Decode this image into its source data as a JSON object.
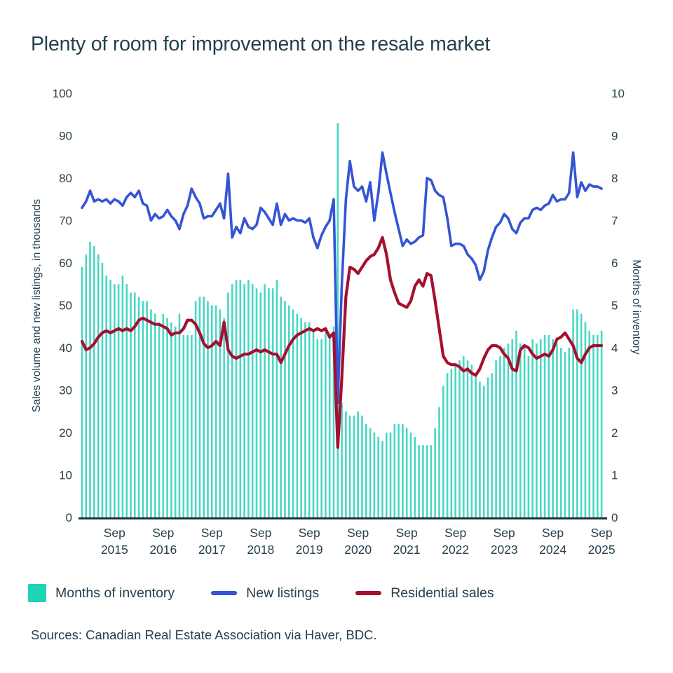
{
  "title": "Plenty of room for improvement on the resale market",
  "source_note": "Sources: Canadian Real Estate Association via Haver, BDC.",
  "colors": {
    "bars": "#49d7c4",
    "legend_swatch": "#1fd3b5",
    "new_listings": "#3455d4",
    "residential_sales": "#a5102f",
    "text": "#26404e",
    "axis_line": "#20323e"
  },
  "legend": {
    "items": [
      {
        "label": "Months of inventory",
        "type": "square",
        "color": "#1fd3b5"
      },
      {
        "label": "New listings",
        "type": "line",
        "color": "#3455d4"
      },
      {
        "label": "Residential sales",
        "type": "line",
        "color": "#a5102f"
      }
    ]
  },
  "chart_data": {
    "type": "combo bar+line (monthly)",
    "x_unit": "month",
    "x_start": "2015-01",
    "x_end": "2025-09",
    "x_tick_month": "Sep",
    "x_tick_years": [
      2015,
      2016,
      2017,
      2018,
      2019,
      2020,
      2021,
      2022,
      2023,
      2024,
      2025
    ],
    "left_axis": {
      "label": "Sales volume and new listings, in thousands",
      "min": 0,
      "max": 100,
      "ticks": [
        0,
        10,
        20,
        30,
        40,
        50,
        60,
        70,
        80,
        90,
        100
      ]
    },
    "right_axis": {
      "label": "Months of inventory",
      "min": 0,
      "max": 10,
      "ticks": [
        0,
        1,
        2,
        3,
        4,
        5,
        6,
        7,
        8,
        9,
        10
      ]
    },
    "series": [
      {
        "name": "Months of inventory",
        "type": "bar",
        "axis": "right",
        "values": [
          5.9,
          6.2,
          6.5,
          6.4,
          6.2,
          6.0,
          5.7,
          5.6,
          5.5,
          5.5,
          5.7,
          5.5,
          5.3,
          5.3,
          5.2,
          5.1,
          5.1,
          4.9,
          4.8,
          4.6,
          4.8,
          4.7,
          4.6,
          4.5,
          4.8,
          4.3,
          4.3,
          4.3,
          5.1,
          5.2,
          5.2,
          5.1,
          5.0,
          5.0,
          4.9,
          4.7,
          5.3,
          5.5,
          5.6,
          5.6,
          5.5,
          5.6,
          5.5,
          5.4,
          5.3,
          5.5,
          5.4,
          5.4,
          5.6,
          5.2,
          5.1,
          5.0,
          4.9,
          4.8,
          4.7,
          4.6,
          4.6,
          4.4,
          4.2,
          4.2,
          4.4,
          4.3,
          4.5,
          9.3,
          2.7,
          2.5,
          2.4,
          2.4,
          2.5,
          2.4,
          2.2,
          2.1,
          2.0,
          1.9,
          1.8,
          2.0,
          2.0,
          2.2,
          2.2,
          2.2,
          2.1,
          2.0,
          1.9,
          1.7,
          1.7,
          1.7,
          1.7,
          2.1,
          2.6,
          3.1,
          3.4,
          3.5,
          3.6,
          3.7,
          3.8,
          3.7,
          3.6,
          3.4,
          3.2,
          3.1,
          3.3,
          3.4,
          3.7,
          3.8,
          4.0,
          4.1,
          4.2,
          4.4,
          4.1,
          4.0,
          3.8,
          4.2,
          4.1,
          4.2,
          4.3,
          4.3,
          4.2,
          4.1,
          4.0,
          3.9,
          4.0,
          4.9,
          4.9,
          4.8,
          4.6,
          4.4,
          4.3,
          4.3,
          4.4
        ]
      },
      {
        "name": "New listings",
        "type": "line",
        "axis": "left",
        "values": [
          73,
          74.5,
          77,
          74.5,
          75,
          74.5,
          75,
          74,
          75,
          74.5,
          73.5,
          75.5,
          76.5,
          75.5,
          77,
          74,
          73.5,
          70,
          71.5,
          70.5,
          71,
          72.5,
          71,
          70,
          68,
          71.5,
          73.5,
          77.5,
          75.5,
          74,
          70.5,
          71,
          71,
          72.5,
          74,
          70.5,
          81,
          66,
          68.5,
          67,
          70.5,
          68.5,
          68,
          69,
          73,
          72,
          70.5,
          69,
          74,
          69,
          71.5,
          70,
          70.5,
          70,
          70,
          69.5,
          70.5,
          66,
          63.5,
          66.5,
          68.5,
          70,
          75,
          27,
          55,
          75,
          84,
          78,
          77,
          78,
          74.5,
          79,
          70,
          76.5,
          86,
          81,
          76.5,
          72,
          68,
          64,
          65.5,
          64.5,
          65,
          66,
          66.5,
          80,
          79.5,
          77,
          76,
          75.5,
          70.5,
          64,
          64.5,
          64.5,
          64,
          62,
          61,
          59.5,
          56,
          58,
          63,
          66,
          68.5,
          69.5,
          71.5,
          70.5,
          68,
          67,
          69.5,
          70.5,
          70.5,
          72.5,
          73,
          72.5,
          73.5,
          74,
          76,
          74.5,
          75,
          75,
          76.5,
          86,
          75.5,
          79,
          77,
          78.5,
          78,
          78,
          77.5
        ]
      },
      {
        "name": "Residential sales",
        "type": "line",
        "axis": "left",
        "values": [
          41.5,
          39.5,
          40,
          41,
          42.5,
          43.5,
          44,
          43.5,
          44,
          44.5,
          44,
          44.5,
          44,
          45,
          46.5,
          47,
          46.5,
          46,
          45.5,
          45.5,
          45,
          44.5,
          43,
          43.5,
          43.5,
          44.5,
          46.5,
          46.5,
          45.5,
          43.5,
          41,
          40,
          40.5,
          41.5,
          40.5,
          46,
          39.5,
          38,
          37.5,
          38,
          38.5,
          38.5,
          39,
          39.5,
          39,
          39.5,
          39,
          38.5,
          38.5,
          36.5,
          38.5,
          40.5,
          42,
          43,
          43.5,
          44,
          44.5,
          44,
          44.5,
          44,
          44.5,
          42.5,
          43.5,
          16.5,
          33,
          52,
          59,
          58.5,
          57.5,
          59,
          60.5,
          61.5,
          62,
          63.5,
          66,
          62,
          56,
          53,
          50.5,
          50,
          49.5,
          51,
          54.5,
          56,
          54.5,
          57.5,
          57,
          51,
          44.5,
          38,
          36.5,
          36,
          36,
          35.5,
          34.5,
          35,
          34,
          33.5,
          35,
          37.5,
          39.5,
          40.5,
          40.5,
          40,
          38.5,
          37.5,
          35,
          34.5,
          39.5,
          40.5,
          40,
          38.5,
          37.5,
          38,
          38.5,
          38,
          39.5,
          42,
          42.5,
          43.5,
          42,
          40.5,
          37.5,
          36.5,
          38.5,
          40,
          40.5,
          40.5,
          40.5
        ]
      }
    ]
  }
}
